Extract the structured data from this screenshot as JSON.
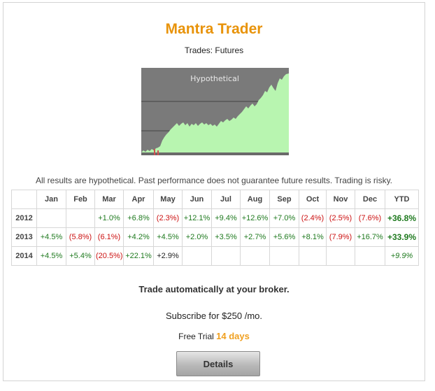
{
  "header": {
    "title": "Mantra Trader",
    "subtitle": "Trades: Futures"
  },
  "equity_chart": {
    "label": "Hypothetical",
    "colors": {
      "background": "#7a7a7a",
      "fill": "#b8f5b0",
      "line": "#444444",
      "drawdown": "#d05050"
    }
  },
  "disclaimer": "All results are hypothetical. Past performance does not guarantee future results. Trading is risky.",
  "table": {
    "columns": [
      "",
      "Jan",
      "Feb",
      "Mar",
      "Apr",
      "May",
      "Jun",
      "Jul",
      "Aug",
      "Sep",
      "Oct",
      "Nov",
      "Dec",
      "YTD"
    ],
    "rows": [
      {
        "year": "2012",
        "months": [
          "",
          "",
          "+1.0%",
          "+6.8%",
          "(2.3%)",
          "+12.1%",
          "+9.4%",
          "+12.6%",
          "+7.0%",
          "(2.4%)",
          "(2.5%)",
          "(7.6%)"
        ],
        "ytd": "+36.8%"
      },
      {
        "year": "2013",
        "months": [
          "+4.5%",
          "(5.8%)",
          "(6.1%)",
          "+4.2%",
          "+4.5%",
          "+2.0%",
          "+3.5%",
          "+2.7%",
          "+5.6%",
          "+8.1%",
          "(7.9%)",
          "+16.7%"
        ],
        "ytd": "+33.9%"
      },
      {
        "year": "2014",
        "months": [
          "+4.5%",
          "+5.4%",
          "(20.5%)",
          "+22.1%",
          "+2.9%",
          "",
          "",
          "",
          "",
          "",
          "",
          ""
        ],
        "ytd": "+9.9%"
      }
    ]
  },
  "cta": {
    "headline": "Trade automatically at your broker.",
    "price": "Subscribe for $250 /mo.",
    "trial_prefix": "Free Trial",
    "trial_days": "14 days",
    "button_label": "Details"
  }
}
